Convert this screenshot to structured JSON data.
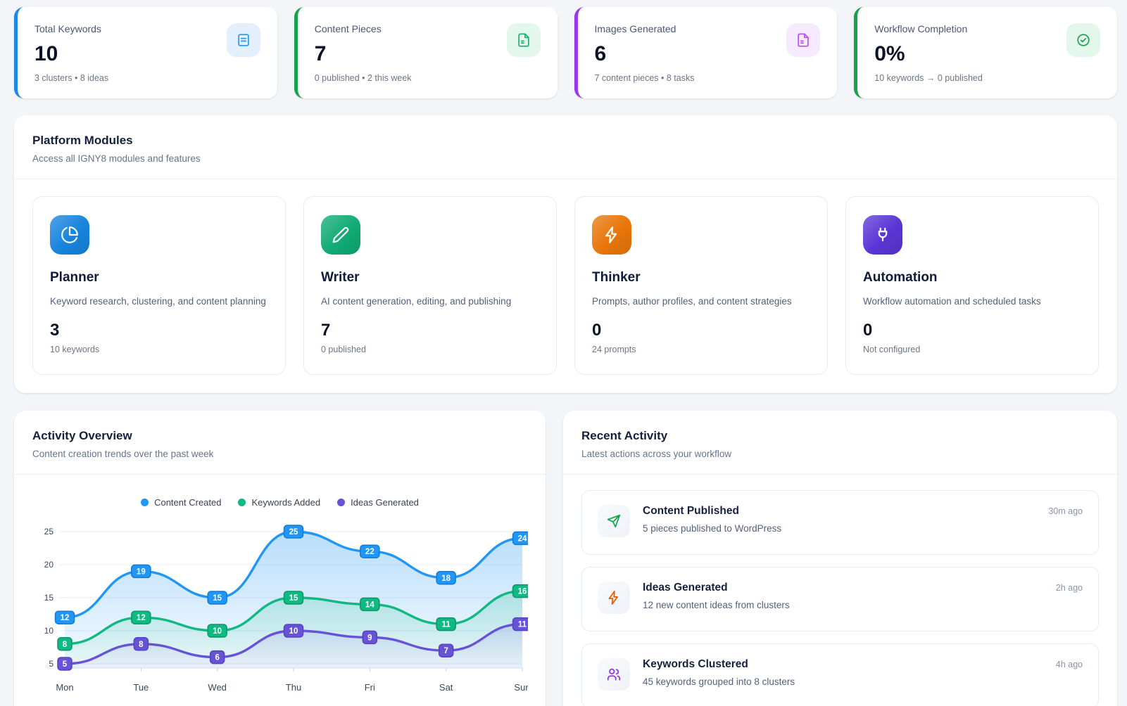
{
  "stats": [
    {
      "title": "Total Keywords",
      "value": "10",
      "sub": "3 clusters • 8 ideas",
      "accent": "#1e88e5",
      "icon": "document-lines-icon",
      "icon_bg": "#e3effc",
      "icon_color": "#2196f3"
    },
    {
      "title": "Content Pieces",
      "value": "7",
      "sub": "0 published • 2 this week",
      "accent": "#16a34a",
      "icon": "file-text-icon",
      "icon_bg": "#e4f7ec",
      "icon_color": "#16b06f"
    },
    {
      "title": "Images Generated",
      "value": "6",
      "sub": "7 content pieces • 8 tasks",
      "accent": "#9b35ea",
      "icon": "images-file-icon",
      "icon_bg": "#f6eafe",
      "icon_color": "#b44ef0"
    },
    {
      "title": "Workflow Completion",
      "value": "0%",
      "sub": "10 keywords → 0 published",
      "accent": "#16a34a",
      "icon": "check-circle-icon",
      "icon_bg": "#e4f7ec",
      "icon_color": "#16a34a"
    }
  ],
  "modules_panel": {
    "title": "Platform Modules",
    "subtitle": "Access all IGNY8 modules and features",
    "modules": [
      {
        "name": "Planner",
        "description": "Keyword research, clustering, and content planning",
        "value": "3",
        "sub": "10 keywords",
        "icon": "pie-chart-icon",
        "tile_color": "#1784dd"
      },
      {
        "name": "Writer",
        "description": "AI content generation, editing, and publishing",
        "value": "7",
        "sub": "0 published",
        "icon": "pencil-icon",
        "tile_color": "#10ab74"
      },
      {
        "name": "Thinker",
        "description": "Prompts, author profiles, and content strategies",
        "value": "0",
        "sub": "24 prompts",
        "icon": "lightning-icon",
        "tile_color": "#e8760a"
      },
      {
        "name": "Automation",
        "description": "Workflow automation and scheduled tasks",
        "value": "0",
        "sub": "Not configured",
        "icon": "plug-icon",
        "tile_color": "#5b35d5"
      }
    ]
  },
  "activity_panel": {
    "title": "Activity Overview",
    "subtitle": "Content creation trends over the past week"
  },
  "chart_data": {
    "type": "line",
    "title": "Activity Overview",
    "x": [
      "Mon",
      "Tue",
      "Wed",
      "Thu",
      "Fri",
      "Sat",
      "Sun"
    ],
    "series": [
      {
        "name": "Content Created",
        "color": "#2196f3",
        "label_border": "#147ad6",
        "values": [
          12,
          19,
          15,
          25,
          22,
          18,
          24
        ]
      },
      {
        "name": "Keywords Added",
        "color": "#10b981",
        "label_border": "#0d9668",
        "values": [
          8,
          12,
          10,
          15,
          14,
          11,
          16
        ]
      },
      {
        "name": "Ideas Generated",
        "color": "#6852d6",
        "label_border": "#5244c2",
        "values": [
          5,
          8,
          6,
          10,
          9,
          7,
          11
        ]
      }
    ],
    "ylim": [
      5,
      25
    ],
    "yticks": [
      5,
      10,
      15,
      20,
      25
    ],
    "grid": true,
    "area": true,
    "data_labels": true,
    "legend_position": "top"
  },
  "recent_panel": {
    "title": "Recent Activity",
    "subtitle": "Latest actions across your workflow",
    "items": [
      {
        "title": "Content Published",
        "description": "5 pieces published to WordPress",
        "time": "30m ago",
        "icon": "send-icon",
        "icon_color": "#16a34a"
      },
      {
        "title": "Ideas Generated",
        "description": "12 new content ideas from clusters",
        "time": "2h ago",
        "icon": "zap-icon",
        "icon_color": "#ea580c"
      },
      {
        "title": "Keywords Clustered",
        "description": "45 keywords grouped into 8 clusters",
        "time": "4h ago",
        "icon": "users-icon",
        "icon_color": "#9333ea"
      }
    ]
  }
}
